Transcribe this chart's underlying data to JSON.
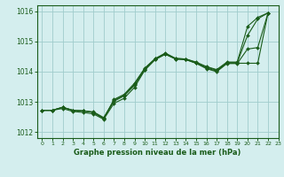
{
  "title": "Graphe pression niveau de la mer (hPa)",
  "background_color": "#d4eeee",
  "grid_color": "#a0cccc",
  "line_color": "#1a5c1a",
  "marker_color": "#1a5c1a",
  "xlim": [
    -0.5,
    23
  ],
  "ylim": [
    1011.8,
    1016.2
  ],
  "xticks": [
    0,
    1,
    2,
    3,
    4,
    5,
    6,
    7,
    8,
    9,
    10,
    11,
    12,
    13,
    14,
    15,
    16,
    17,
    18,
    19,
    20,
    21,
    22,
    23
  ],
  "yticks": [
    1012,
    1013,
    1014,
    1015,
    1016
  ],
  "x_series": [
    0,
    1,
    2,
    3,
    4,
    5,
    6,
    7,
    8,
    9,
    10,
    11,
    12,
    13,
    14,
    15,
    16,
    17,
    18,
    19,
    20,
    21,
    22
  ],
  "series": [
    [
      1012.72,
      1012.72,
      1012.82,
      1012.72,
      1012.7,
      1012.67,
      1012.48,
      1013.02,
      1013.2,
      1013.55,
      1014.07,
      1014.4,
      1014.58,
      1014.42,
      1014.4,
      1014.28,
      1014.12,
      1014.02,
      1014.28,
      1014.28,
      1014.28,
      1014.28,
      1015.95
    ],
    [
      1012.72,
      1012.72,
      1012.82,
      1012.72,
      1012.7,
      1012.65,
      1012.45,
      1013.05,
      1013.22,
      1013.58,
      1014.1,
      1014.43,
      1014.6,
      1014.44,
      1014.42,
      1014.3,
      1014.15,
      1014.05,
      1014.3,
      1014.3,
      1015.2,
      1015.75,
      1015.95
    ],
    [
      1012.72,
      1012.72,
      1012.82,
      1012.72,
      1012.7,
      1012.65,
      1012.45,
      1013.08,
      1013.25,
      1013.62,
      1014.12,
      1014.43,
      1014.62,
      1014.44,
      1014.42,
      1014.32,
      1014.17,
      1014.07,
      1014.32,
      1014.32,
      1015.5,
      1015.8,
      1015.95
    ],
    [
      1012.72,
      1012.72,
      1012.78,
      1012.68,
      1012.65,
      1012.6,
      1012.42,
      1012.95,
      1013.12,
      1013.48,
      1014.05,
      1014.4,
      1014.58,
      1014.42,
      1014.4,
      1014.28,
      1014.1,
      1014.0,
      1014.27,
      1014.27,
      1014.75,
      1014.8,
      1015.95
    ]
  ]
}
